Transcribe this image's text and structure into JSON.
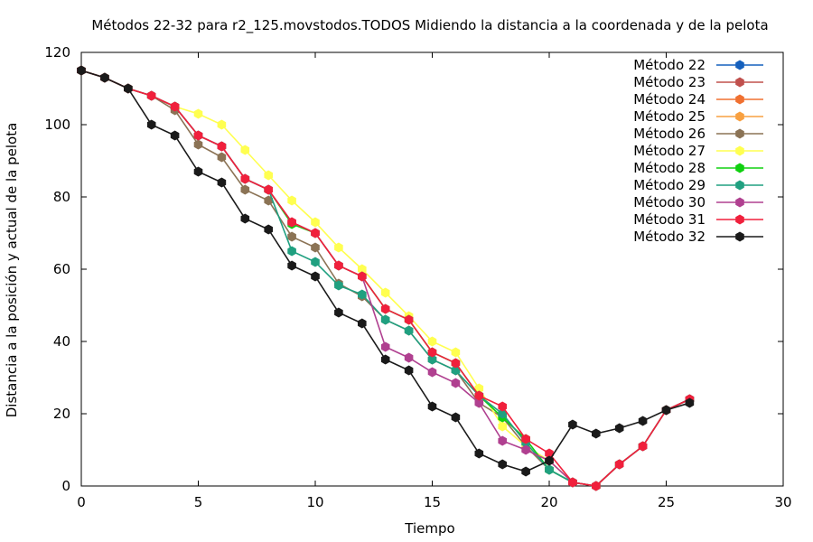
{
  "chart_data": {
    "type": "line",
    "title": "Métodos 22-32 para r2_125.movstodos.TODOS Midiendo la distancia a la coordenada y de la pelota",
    "xlabel": "Tiempo",
    "ylabel": "Distancia a la posición y actual de la pelota",
    "xlim": [
      0,
      30
    ],
    "ylim": [
      0,
      120
    ],
    "xticks": [
      "0",
      "5",
      "10",
      "15",
      "20",
      "25",
      "30"
    ],
    "yticks": [
      "0",
      "20",
      "40",
      "60",
      "80",
      "100",
      "120"
    ],
    "grid": false,
    "legend_position": "top-right",
    "series": [
      {
        "name": "Método 22",
        "color": "#1560bd",
        "x": [],
        "y": []
      },
      {
        "name": "Método 23",
        "color": "#c0504d",
        "x": [],
        "y": []
      },
      {
        "name": "Método 24",
        "color": "#f07030",
        "x": [],
        "y": []
      },
      {
        "name": "Método 25",
        "color": "#f8a040",
        "x": [],
        "y": []
      },
      {
        "name": "Método 26",
        "color": "#8b7355",
        "x": [
          0,
          1,
          2,
          3,
          4,
          5,
          6,
          7,
          8,
          9,
          10,
          11,
          12,
          13,
          14,
          15,
          16,
          17,
          18,
          19,
          20,
          21,
          22,
          23,
          24,
          25,
          26
        ],
        "y": [
          115,
          113,
          110,
          108,
          104,
          94.5,
          91,
          82,
          79,
          69,
          66,
          56,
          52.5,
          46,
          43,
          35,
          32,
          23,
          19,
          11,
          4.5,
          1,
          0,
          6,
          11,
          21,
          24
        ]
      },
      {
        "name": "Método 27",
        "color": "#ffff50",
        "x": [
          0,
          1,
          2,
          3,
          4,
          5,
          6,
          7,
          8,
          9,
          10,
          11,
          12,
          13,
          14,
          15,
          16,
          17,
          18,
          19,
          20,
          21,
          22,
          23,
          24,
          25,
          26
        ],
        "y": [
          115,
          113,
          110,
          108,
          105,
          103,
          100,
          93,
          86,
          79,
          73,
          66,
          60,
          53.5,
          47,
          40,
          37,
          27,
          16.5,
          11,
          7,
          1,
          0,
          6,
          11,
          21,
          24
        ]
      },
      {
        "name": "Método 28",
        "color": "#10d010",
        "x": [
          0,
          1,
          2,
          3,
          4,
          5,
          6,
          7,
          8,
          9,
          10,
          11,
          12,
          13,
          14,
          15,
          16,
          17,
          18,
          19,
          20,
          21,
          22,
          23,
          24,
          25,
          26
        ],
        "y": [
          115,
          113,
          110,
          108,
          105,
          97,
          94,
          85,
          82,
          72.5,
          70,
          61,
          58,
          49,
          46,
          37,
          34,
          25,
          19,
          13,
          4.5,
          1,
          0,
          6,
          11,
          21,
          24
        ]
      },
      {
        "name": "Método 29",
        "color": "#20a080",
        "x": [
          0,
          1,
          2,
          3,
          4,
          5,
          6,
          7,
          8,
          9,
          10,
          11,
          12,
          13,
          14,
          15,
          16,
          17,
          18,
          19,
          20,
          21,
          22,
          23,
          24,
          25,
          26
        ],
        "y": [
          115,
          113,
          110,
          108,
          105,
          97,
          94,
          85,
          82,
          65,
          62,
          55.5,
          53,
          46,
          43,
          35,
          32,
          25,
          20,
          12,
          4.5,
          1,
          0,
          6,
          11,
          21,
          24
        ]
      },
      {
        "name": "Método 30",
        "color": "#b04090",
        "x": [
          0,
          1,
          2,
          3,
          4,
          5,
          6,
          7,
          8,
          9,
          10,
          11,
          12,
          13,
          14,
          15,
          16,
          17,
          18,
          19,
          20,
          21,
          22,
          23,
          24,
          25,
          26
        ],
        "y": [
          115,
          113,
          110,
          108,
          105,
          97,
          94,
          85,
          82,
          73,
          70,
          61,
          58,
          38.5,
          35.5,
          31.5,
          28.5,
          23,
          12.5,
          10,
          7,
          1,
          0,
          6,
          11,
          21,
          24
        ]
      },
      {
        "name": "Método 31",
        "color": "#f0203c",
        "x": [
          0,
          1,
          2,
          3,
          4,
          5,
          6,
          7,
          8,
          9,
          10,
          11,
          12,
          13,
          14,
          15,
          16,
          17,
          18,
          19,
          20,
          21,
          22,
          23,
          24,
          25,
          26
        ],
        "y": [
          115,
          113,
          110,
          108,
          105,
          97,
          94,
          85,
          82,
          73,
          70,
          61,
          58,
          49,
          46,
          37,
          34,
          25,
          22,
          13,
          9,
          1,
          0,
          6,
          11,
          21,
          24
        ]
      },
      {
        "name": "Método 32",
        "color": "#1a1a1a",
        "x": [
          0,
          1,
          2,
          3,
          4,
          5,
          6,
          7,
          8,
          9,
          10,
          11,
          12,
          13,
          14,
          15,
          16,
          17,
          18,
          19,
          20,
          21,
          22,
          23,
          24,
          25,
          26
        ],
        "y": [
          115,
          113,
          110,
          100,
          97,
          87,
          84,
          74,
          71,
          61,
          58,
          48,
          45,
          35,
          32,
          22,
          19,
          9,
          6,
          4,
          7,
          17,
          14.5,
          16,
          18,
          21,
          23
        ]
      }
    ]
  }
}
